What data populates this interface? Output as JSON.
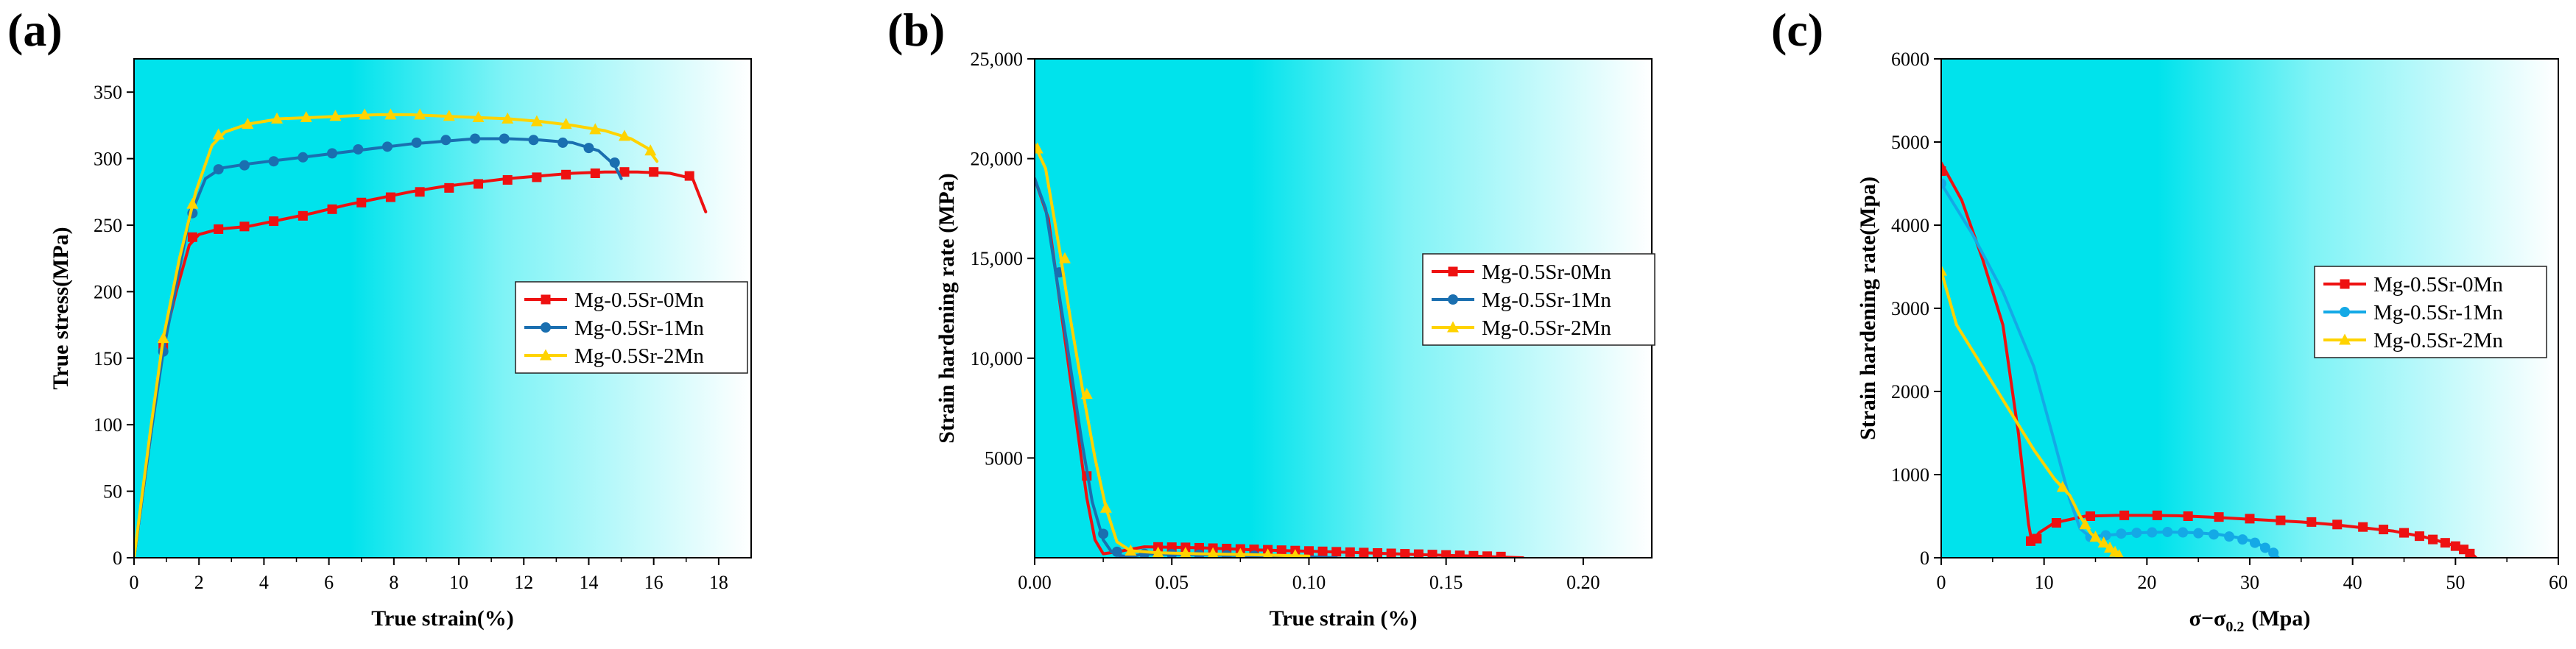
{
  "colors": {
    "red": "#ee1111",
    "blue": "#1a6fb0",
    "lightblue": "#14a9e6",
    "yellow": "#ffd300",
    "cyan": "#00e3ec"
  },
  "chart_data": [
    {
      "panel": "(a)",
      "type": "line",
      "xlabel": "True strain(%)",
      "ylabel": "True stress(MPa)",
      "xlim": [
        0,
        19
      ],
      "ylim": [
        0,
        375
      ],
      "xticks": [
        0,
        2,
        4,
        6,
        8,
        10,
        12,
        14,
        16,
        18
      ],
      "yticks": [
        0,
        50,
        100,
        150,
        200,
        250,
        300,
        350
      ],
      "xtick_labels": [
        "0",
        "2",
        "4",
        "6",
        "8",
        "10",
        "12",
        "14",
        "16",
        "18"
      ],
      "ytick_labels": [
        "0",
        "50",
        "100",
        "150",
        "200",
        "250",
        "300",
        "350"
      ],
      "legend": [
        "Mg-0.5Sr-0Mn",
        "Mg-0.5Sr-1Mn",
        "Mg-0.5Sr-2Mn"
      ],
      "series": [
        {
          "name": "Mg-0.5Sr-0Mn",
          "color": "red",
          "marker": "square",
          "x": [
            0,
            0.5,
            0.9,
            1.3,
            1.7,
            2.0,
            2.6,
            3.5,
            4.5,
            5.5,
            6.5,
            7.5,
            8.5,
            9.5,
            10.5,
            11.5,
            12.5,
            13.5,
            14.5,
            15.5,
            16.5,
            17.2,
            17.6
          ],
          "y": [
            0,
            90,
            160,
            200,
            235,
            243,
            247,
            249,
            254,
            259,
            265,
            270,
            275,
            279,
            282,
            285,
            287,
            289,
            290,
            290,
            289,
            285,
            260
          ],
          "markers_x": [
            0.9,
            1.8,
            2.6,
            3.4,
            4.3,
            5.2,
            6.1,
            7.0,
            7.9,
            8.8,
            9.7,
            10.6,
            11.5,
            12.4,
            13.3,
            14.2,
            15.1,
            16.0,
            17.1
          ],
          "markers_y": [
            160,
            241,
            247,
            249,
            253,
            257,
            262,
            267,
            271,
            275,
            278,
            281,
            284,
            286,
            288,
            289,
            290,
            290,
            287
          ]
        },
        {
          "name": "Mg-0.5Sr-1Mn",
          "color": "blue",
          "marker": "circle",
          "x": [
            0,
            0.5,
            0.9,
            1.3,
            1.7,
            2.2,
            2.7,
            3.5,
            4.5,
            5.5,
            6.5,
            7.5,
            8.5,
            9.5,
            10.5,
            11.5,
            12.5,
            13.5,
            14.3,
            14.8,
            15.0
          ],
          "y": [
            0,
            90,
            155,
            205,
            255,
            285,
            293,
            296,
            299,
            302,
            305,
            308,
            311,
            313,
            315,
            315,
            314,
            312,
            306,
            295,
            285
          ],
          "markers_x": [
            0.9,
            1.8,
            2.6,
            3.4,
            4.3,
            5.2,
            6.1,
            6.9,
            7.8,
            8.7,
            9.6,
            10.5,
            11.4,
            12.3,
            13.2,
            14.0,
            14.8
          ],
          "markers_y": [
            155,
            259,
            292,
            295,
            298,
            301,
            304,
            307,
            309,
            312,
            314,
            315,
            315,
            314,
            312,
            308,
            297
          ]
        },
        {
          "name": "Mg-0.5Sr-2Mn",
          "color": "yellow",
          "marker": "triangle",
          "x": [
            0,
            0.5,
            0.9,
            1.4,
            1.9,
            2.4,
            2.8,
            3.5,
            4.5,
            5.5,
            6.5,
            7.5,
            8.5,
            9.5,
            10.5,
            11.5,
            12.5,
            13.5,
            14.5,
            15.3,
            15.8,
            16.1
          ],
          "y": [
            0,
            95,
            165,
            225,
            275,
            310,
            320,
            326,
            330,
            331,
            332,
            333,
            333,
            332,
            331,
            330,
            328,
            325,
            321,
            315,
            308,
            298
          ],
          "markers_x": [
            0.9,
            1.8,
            2.6,
            3.5,
            4.4,
            5.3,
            6.2,
            7.1,
            7.9,
            8.8,
            9.7,
            10.6,
            11.5,
            12.4,
            13.3,
            14.2,
            15.1,
            15.9
          ],
          "markers_y": [
            165,
            266,
            318,
            326,
            330,
            331,
            332,
            333,
            333,
            333,
            332,
            331,
            330,
            328,
            326,
            322,
            317,
            306
          ]
        }
      ]
    },
    {
      "panel": "(b)",
      "type": "line",
      "xlabel": "True strain (%)",
      "ylabel": "Strain hardening rate (MPa)",
      "xlim": [
        0,
        0.225
      ],
      "ylim": [
        0,
        25000
      ],
      "xticks": [
        0,
        0.05,
        0.1,
        0.15,
        0.2
      ],
      "yticks": [
        5000,
        10000,
        15000,
        20000,
        25000
      ],
      "xtick_labels": [
        "0.00",
        "0.05",
        "0.10",
        "0.15",
        "0.20"
      ],
      "ytick_labels": [
        "5000",
        "10,000",
        "15,000",
        "20,000",
        "25,000"
      ],
      "legend": [
        "Mg-0.5Sr-0Mn",
        "Mg-0.5Sr-1Mn",
        "Mg-0.5Sr-2Mn"
      ],
      "series": [
        {
          "name": "Mg-0.5Sr-0Mn",
          "color": "red",
          "marker": "square",
          "x": [
            0,
            0.005,
            0.01,
            0.015,
            0.019,
            0.022,
            0.025,
            0.03,
            0.04,
            0.06,
            0.08,
            0.1,
            0.12,
            0.14,
            0.16,
            0.178
          ],
          "y": [
            19000,
            17000,
            12000,
            7000,
            3000,
            900,
            200,
            300,
            550,
            500,
            400,
            330,
            250,
            160,
            80,
            0
          ],
          "markers_x": [
            0.019,
            0.045,
            0.05,
            0.055,
            0.06,
            0.065,
            0.07,
            0.075,
            0.08,
            0.085,
            0.09,
            0.095,
            0.1,
            0.105,
            0.11,
            0.115,
            0.12,
            0.125,
            0.13,
            0.135,
            0.14,
            0.145,
            0.15,
            0.155,
            0.16,
            0.165,
            0.17
          ],
          "markers_y": [
            4100,
            540,
            530,
            520,
            500,
            480,
            460,
            440,
            420,
            400,
            380,
            360,
            340,
            320,
            300,
            280,
            260,
            240,
            220,
            200,
            180,
            160,
            140,
            120,
            100,
            80,
            60
          ]
        },
        {
          "name": "Mg-0.5Sr-1Mn",
          "color": "blue",
          "marker": "circle",
          "x": [
            0,
            0.004,
            0.008,
            0.012,
            0.017,
            0.021,
            0.025,
            0.028,
            0.031,
            0.035,
            0.04,
            0.06,
            0.09,
            0.11
          ],
          "y": [
            19000,
            17500,
            14000,
            10500,
            6000,
            2800,
            900,
            300,
            100,
            50,
            200,
            150,
            80,
            0
          ],
          "markers_x": [
            0.009,
            0.025,
            0.03,
            0.04,
            0.05,
            0.06,
            0.07,
            0.08
          ],
          "markers_y": [
            14300,
            1200,
            300,
            200,
            180,
            150,
            120,
            100
          ]
        },
        {
          "name": "Mg-0.5Sr-2Mn",
          "color": "yellow",
          "marker": "triangle",
          "x": [
            0,
            0.004,
            0.009,
            0.013,
            0.018,
            0.022,
            0.026,
            0.03,
            0.035,
            0.045,
            0.06,
            0.08,
            0.1
          ],
          "y": [
            20700,
            19500,
            15500,
            12000,
            8000,
            5000,
            2500,
            800,
            350,
            250,
            200,
            150,
            80
          ],
          "markers_x": [
            0.001,
            0.011,
            0.019,
            0.026,
            0.035,
            0.045,
            0.055,
            0.065,
            0.075,
            0.085,
            0.095
          ],
          "markers_y": [
            20500,
            15000,
            8200,
            2500,
            350,
            250,
            230,
            210,
            180,
            150,
            120
          ]
        }
      ]
    },
    {
      "panel": "(c)",
      "type": "line",
      "xlabel": "σ−σ0.2 (Mpa)",
      "xlabel_main": "σ−σ",
      "xlabel_sub": "0.2",
      "xlabel_unit": "(Mpa)",
      "ylabel": "Strain hardening rate(Mpa)",
      "xlim": [
        0,
        60
      ],
      "ylim": [
        0,
        6000
      ],
      "xticks": [
        0,
        10,
        20,
        30,
        40,
        50,
        60
      ],
      "yticks": [
        0,
        1000,
        2000,
        3000,
        4000,
        5000,
        6000
      ],
      "xtick_labels": [
        "0",
        "10",
        "20",
        "30",
        "40",
        "50",
        "60"
      ],
      "ytick_labels": [
        "0",
        "1000",
        "2000",
        "3000",
        "4000",
        "5000",
        "6000"
      ],
      "legend": [
        "Mg-0.5Sr-0Mn",
        "Mg-0.5Sr-1Mn",
        "Mg-0.5Sr-2Mn"
      ],
      "series": [
        {
          "name": "Mg-0.5Sr-0Mn",
          "color": "red",
          "marker": "square",
          "x": [
            0,
            2,
            4,
            6,
            7.5,
            8.5,
            8.8,
            9.0,
            9.5,
            11,
            14,
            17,
            20,
            23,
            26,
            29,
            32,
            35,
            38,
            41,
            44,
            47,
            49,
            50.5,
            51.5,
            52
          ],
          "y": [
            4750,
            4300,
            3600,
            2800,
            1500,
            400,
            200,
            220,
            300,
            420,
            500,
            510,
            510,
            505,
            490,
            470,
            450,
            430,
            400,
            360,
            320,
            250,
            180,
            120,
            60,
            0
          ],
          "markers_x": [
            0,
            8.7,
            9.3,
            11.2,
            14.5,
            17.8,
            21,
            24,
            27,
            30,
            33,
            36,
            38.5,
            41,
            43,
            45,
            46.5,
            47.8,
            49,
            50,
            50.8,
            51.4
          ],
          "markers_y": [
            4650,
            200,
            230,
            420,
            500,
            510,
            510,
            500,
            490,
            470,
            450,
            430,
            400,
            370,
            340,
            300,
            260,
            220,
            180,
            140,
            100,
            50
          ]
        },
        {
          "name": "Mg-0.5Sr-1Mn",
          "color": "lightblue",
          "marker": "circle",
          "x": [
            0,
            3,
            6,
            9,
            11,
            12.5,
            13.5,
            14.5,
            16,
            19,
            22,
            25,
            27,
            29,
            30.5,
            31.5,
            32.3,
            32.8
          ],
          "y": [
            4500,
            3900,
            3200,
            2300,
            1400,
            700,
            350,
            250,
            270,
            300,
            310,
            300,
            280,
            240,
            190,
            120,
            60,
            0
          ],
          "markers_x": [
            0,
            14.5,
            16,
            17.5,
            19,
            20.5,
            22,
            23.5,
            25,
            26.5,
            28,
            29.3,
            30.5,
            31.5,
            32.3
          ],
          "markers_y": [
            4500,
            250,
            270,
            290,
            300,
            305,
            310,
            305,
            295,
            280,
            255,
            220,
            180,
            120,
            60
          ]
        },
        {
          "name": "Mg-0.5Sr-2Mn",
          "color": "yellow",
          "marker": "triangle",
          "x": [
            0,
            1.5,
            3,
            5,
            7,
            9,
            11,
            12.5,
            13.5,
            14.5,
            15.5,
            16.5,
            17.2,
            17.6
          ],
          "y": [
            3450,
            2800,
            2500,
            2100,
            1700,
            1300,
            950,
            750,
            500,
            300,
            180,
            100,
            40,
            0
          ],
          "markers_x": [
            0,
            11.8,
            14,
            15,
            15.8,
            16.4,
            16.9,
            17.3
          ],
          "markers_y": [
            3450,
            850,
            400,
            250,
            180,
            120,
            70,
            30
          ]
        }
      ]
    }
  ]
}
